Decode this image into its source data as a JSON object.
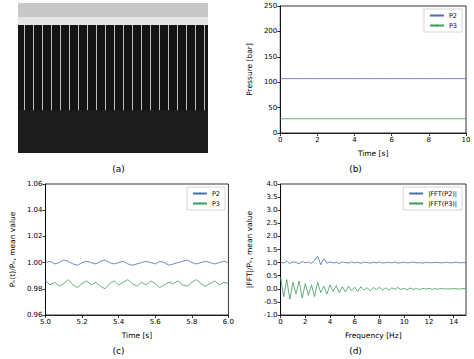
{
  "chart_data": [
    {
      "type": "image",
      "title": "(a)"
    },
    {
      "type": "line",
      "title": "(b)",
      "x_label": "Time [s]",
      "y_label": "Pressure [bar]",
      "x": [
        0,
        1,
        2,
        3,
        4,
        5,
        6,
        7,
        8,
        9,
        10
      ],
      "series": [
        {
          "name": "P2",
          "color": "#4c6fb0",
          "values": [
            107,
            107,
            107,
            107,
            107,
            107,
            107,
            107,
            107,
            107,
            107
          ]
        },
        {
          "name": "P3",
          "color": "#3f9a5f",
          "values": [
            28,
            28,
            28,
            28,
            28,
            28,
            28,
            28,
            28,
            28,
            28
          ]
        }
      ],
      "xlim": [
        0,
        10
      ],
      "xticks": [
        0,
        2,
        4,
        6,
        8,
        10
      ],
      "ylim": [
        0,
        250
      ],
      "yticks": [
        0,
        50,
        100,
        150,
        200,
        250
      ],
      "grid": false,
      "legend": "upper right"
    },
    {
      "type": "line",
      "title": "(c)",
      "x_label": "Time [s]",
      "y_label": "Pₖ(t)/Pₖ, mean value",
      "x": [
        5,
        5.025,
        5.05,
        5.075,
        5.1,
        5.125,
        5.15,
        5.175,
        5.2,
        5.225,
        5.25,
        5.275,
        5.3,
        5.325,
        5.35,
        5.375,
        5.4,
        5.425,
        5.45,
        5.475,
        5.5,
        5.525,
        5.55,
        5.575,
        5.6,
        5.625,
        5.65,
        5.675,
        5.7,
        5.725,
        5.75,
        5.775,
        5.8,
        5.825,
        5.85,
        5.875,
        5.9,
        5.925,
        5.95,
        5.975,
        6
      ],
      "series": [
        {
          "name": "P2",
          "color": "#4c6fb0",
          "values": [
            1.0,
            1.001,
            0.999,
            1.0,
            1.002,
            1.001,
            0.999,
            0.998,
            1.0,
            1.001,
            1.0,
            0.999,
            1.001,
            1.002,
            1.0,
            0.999,
            1.0,
            1.001,
            0.999,
            0.998,
            0.999,
            1.0,
            1.001,
            1.0,
            0.999,
            1.001,
            1.0,
            0.998,
            0.999,
            1.0,
            1.001,
            1.002,
            1.0,
            0.999,
            1.0,
            1.001,
            1.0,
            0.999,
            1.0,
            1.001,
            1.0
          ]
        },
        {
          "name": "P3",
          "color": "#3f9a5f",
          "values": [
            0.986,
            0.983,
            0.985,
            0.982,
            0.984,
            0.987,
            0.983,
            0.981,
            0.984,
            0.986,
            0.983,
            0.985,
            0.982,
            0.98,
            0.984,
            0.986,
            0.983,
            0.985,
            0.987,
            0.984,
            0.982,
            0.985,
            0.983,
            0.986,
            0.984,
            0.981,
            0.983,
            0.985,
            0.984,
            0.986,
            0.983,
            0.982,
            0.985,
            0.987,
            0.984,
            0.982,
            0.984,
            0.986,
            0.983,
            0.985,
            0.984
          ]
        }
      ],
      "xlim": [
        5,
        6
      ],
      "xticks": [
        {
          "value": 5,
          "label": "5.0"
        },
        5.2,
        5.4,
        5.6,
        5.8,
        {
          "value": 6,
          "label": "6.0"
        }
      ],
      "ylim": [
        0.96,
        1.06
      ],
      "yticks": [
        0.96,
        0.98,
        {
          "value": 1,
          "label": "1.00"
        },
        1.02,
        1.04,
        1.06
      ],
      "grid": false,
      "legend": "upper right"
    },
    {
      "type": "line",
      "title": "(d)",
      "x_label": "Frequency [Hz]",
      "y_label": "|FFT|/Pₖ, mean value",
      "x": [
        0,
        0.25,
        0.5,
        0.75,
        1,
        1.25,
        1.5,
        1.75,
        2,
        2.25,
        2.5,
        2.75,
        3,
        3.25,
        3.5,
        3.75,
        4,
        4.25,
        4.5,
        4.75,
        5,
        5.25,
        5.5,
        5.75,
        6,
        6.25,
        6.5,
        6.75,
        7,
        7.25,
        7.5,
        7.75,
        8,
        8.25,
        8.5,
        8.75,
        9,
        9.25,
        9.5,
        9.75,
        10,
        10.25,
        10.5,
        10.75,
        11,
        11.25,
        11.5,
        11.75,
        12,
        12.25,
        12.5,
        12.75,
        13,
        13.25,
        13.5,
        13.75,
        14,
        14.25,
        14.5,
        14.75,
        15
      ],
      "series": [
        {
          "name": "|FFT(P2)|",
          "color": "#4c6fb0",
          "values": [
            1.02,
            0.98,
            1.05,
            0.97,
            1.03,
            1.0,
            0.96,
            1.04,
            0.99,
            1.02,
            0.97,
            1.08,
            1.25,
            0.92,
            1.15,
            0.98,
            1.03,
            0.99,
            1.01,
            0.97,
            1.02,
            1.0,
            0.98,
            1.03,
            0.99,
            1.01,
            0.97,
            1.02,
            1.0,
            0.98,
            1.01,
            0.99,
            1.02,
            0.98,
            1.0,
            1.01,
            0.99,
            1.02,
            0.98,
            1.0,
            1.01,
            0.99,
            1.0,
            1.02,
            0.99,
            1.0,
            0.98,
            1.01,
            1.0,
            0.99,
            1.01,
            1.0,
            0.99,
            1.0,
            1.01,
            0.99,
            1.0,
            1.01,
            0.99,
            1.0,
            1.0
          ]
        },
        {
          "name": "|FFT(P3)|",
          "color": "#3f9a5f",
          "values": [
            0.45,
            -0.3,
            0.35,
            -0.4,
            0.25,
            -0.2,
            0.3,
            -0.35,
            0.2,
            -0.25,
            0.15,
            -0.3,
            0.25,
            -0.15,
            0.1,
            -0.2,
            0.15,
            -0.1,
            0.12,
            -0.15,
            0.08,
            -0.12,
            0.1,
            -0.08,
            0.06,
            -0.1,
            0.08,
            -0.05,
            0.04,
            -0.08,
            0.05,
            -0.03,
            0.06,
            -0.04,
            0.03,
            -0.05,
            0.04,
            -0.02,
            0.05,
            -0.03,
            0.02,
            -0.04,
            0.03,
            -0.02,
            0.01,
            -0.03,
            0.02,
            -0.01,
            0.02,
            -0.02,
            0.01,
            -0.02,
            0.02,
            -0.01,
            0.0,
            -0.01,
            0.01,
            0.0,
            -0.01,
            0.01,
            0.0
          ]
        }
      ],
      "xlim": [
        0,
        15
      ],
      "xticks": [
        0,
        2,
        4,
        6,
        8,
        10,
        12,
        14
      ],
      "ylim": [
        -1,
        4
      ],
      "yticks": [
        {
          "value": -1,
          "label": "-1.0"
        },
        -0.5,
        {
          "value": 0,
          "label": "0.0"
        },
        0.5,
        {
          "value": 1,
          "label": "1.0"
        },
        1.5,
        {
          "value": 2,
          "label": "2.0"
        },
        2.5,
        {
          "value": 3,
          "label": "3.0"
        },
        3.5,
        {
          "value": 4,
          "label": "4.0"
        }
      ],
      "grid": false,
      "legend": "upper right"
    }
  ]
}
